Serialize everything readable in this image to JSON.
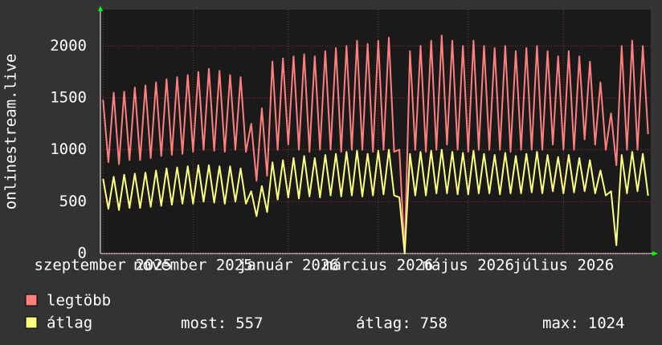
{
  "chart_data": {
    "type": "line",
    "y_label": "onlinestream.live",
    "categories": [
      "szeptember 2025",
      null,
      null,
      null,
      null,
      null,
      null,
      null,
      null,
      null,
      null,
      null,
      null,
      null,
      null,
      null,
      null,
      "november 2025",
      null,
      null,
      null,
      null,
      null,
      null,
      null,
      null,
      null,
      null,
      null,
      null,
      null,
      null,
      null,
      null,
      null,
      "január 2026",
      null,
      null,
      null,
      null,
      null,
      null,
      null,
      null,
      null,
      null,
      null,
      null,
      null,
      null,
      null,
      null,
      "március 2026",
      null,
      null,
      null,
      null,
      null,
      null,
      null,
      null,
      null,
      null,
      null,
      null,
      null,
      null,
      null,
      null,
      "május 2026",
      null,
      null,
      null,
      null,
      null,
      null,
      null,
      null,
      null,
      null,
      null,
      null,
      null,
      null,
      null,
      null,
      null,
      "július 2026",
      null,
      null,
      null,
      null,
      null,
      null,
      null,
      null,
      null,
      null,
      null,
      null,
      null,
      null,
      null,
      null
    ],
    "series": [
      {
        "name": "legtöbb",
        "color": "#ff7f7f",
        "values": [
          1480,
          880,
          1550,
          860,
          1560,
          900,
          1600,
          900,
          1620,
          920,
          1650,
          940,
          1680,
          950,
          1700,
          960,
          1720,
          980,
          1750,
          1000,
          1780,
          990,
          1760,
          980,
          1720,
          1000,
          1700,
          980,
          1250,
          700,
          1400,
          750,
          1850,
          1000,
          1880,
          1050,
          1900,
          1000,
          1920,
          980,
          1900,
          1000,
          1950,
          1000,
          1980,
          980,
          2000,
          1000,
          2050,
          1000,
          2020,
          980,
          2050,
          1000,
          2080,
          980,
          1000,
          0,
          1950,
          1000,
          2000,
          980,
          2050,
          1000,
          2100,
          1050,
          2050,
          1000,
          2000,
          980,
          2050,
          1000,
          2000,
          1000,
          1980,
          1000,
          2000,
          980,
          1950,
          1000,
          1980,
          1000,
          2000,
          1000,
          1950,
          1050,
          1900,
          1000,
          1950,
          1000,
          1900,
          1100,
          1850,
          1050,
          1650,
          1000,
          1350,
          850,
          2000,
          1000,
          2050,
          1000,
          2000,
          1150
        ]
      },
      {
        "name": "átlag",
        "color": "#ffff7f",
        "values": [
          720,
          430,
          740,
          420,
          760,
          440,
          770,
          440,
          780,
          450,
          800,
          460,
          820,
          470,
          830,
          480,
          840,
          480,
          850,
          500,
          850,
          490,
          840,
          480,
          840,
          500,
          820,
          480,
          600,
          360,
          650,
          400,
          880,
          520,
          900,
          540,
          920,
          530,
          940,
          550,
          920,
          540,
          950,
          560,
          960,
          550,
          980,
          560,
          990,
          550,
          960,
          560,
          990,
          570,
          1000,
          560,
          540,
          0,
          960,
          560,
          980,
          560,
          990,
          580,
          1000,
          580,
          980,
          570,
          970,
          570,
          990,
          580,
          960,
          580,
          950,
          570,
          970,
          580,
          940,
          580,
          960,
          590,
          980,
          580,
          950,
          600,
          930,
          580,
          950,
          590,
          920,
          600,
          900,
          580,
          800,
          560,
          600,
          80,
          950,
          580,
          980,
          600,
          960,
          557
        ]
      }
    ],
    "stats": [
      {
        "label": "most:",
        "value": 557
      },
      {
        "label": "átlag:",
        "value": 758
      },
      {
        "label": "max:",
        "value": 1024
      }
    ],
    "ylim": [
      0,
      2350
    ],
    "yticks": [
      0,
      500,
      1000,
      1500,
      2000
    ],
    "grid": true
  }
}
